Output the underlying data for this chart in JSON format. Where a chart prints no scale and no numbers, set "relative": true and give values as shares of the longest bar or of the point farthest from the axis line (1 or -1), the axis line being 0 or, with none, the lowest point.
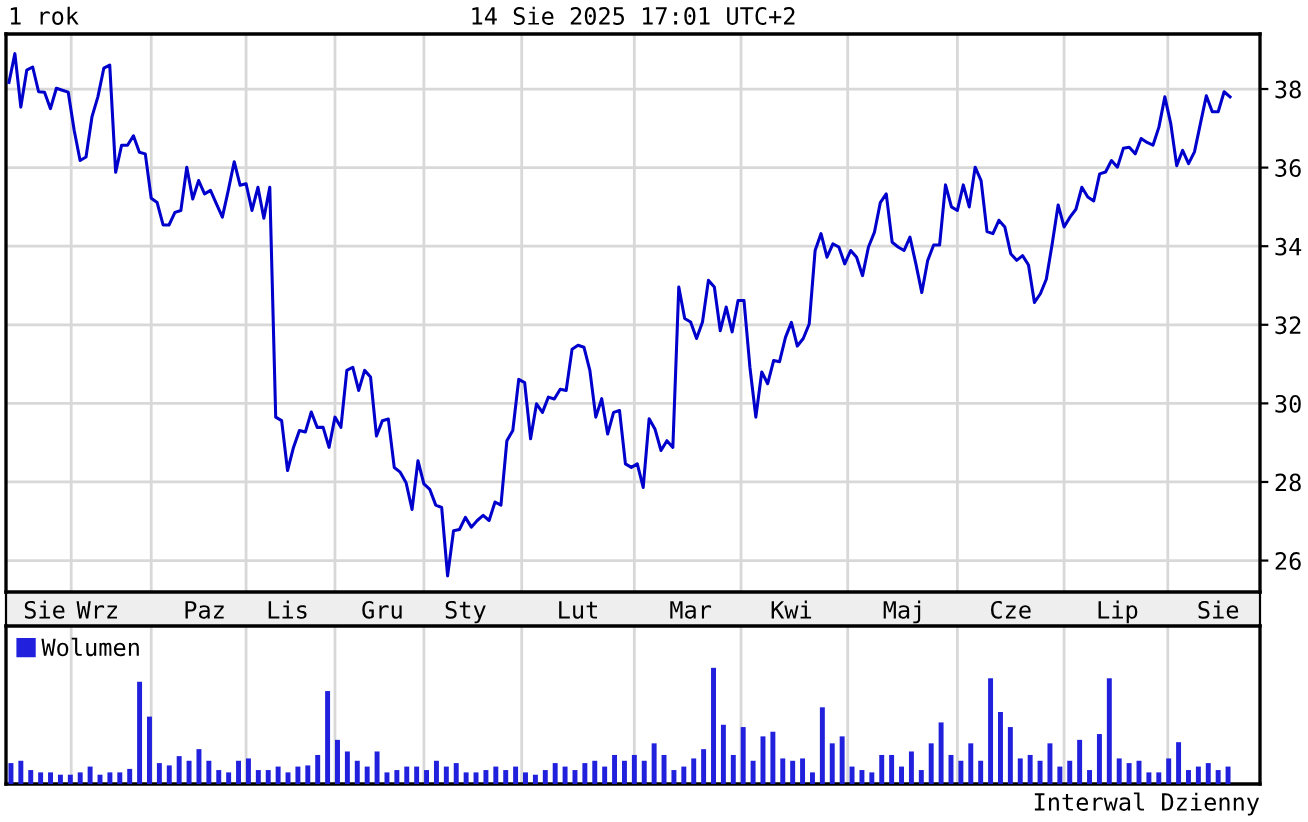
{
  "chart_data": [
    {
      "type": "line",
      "title": "1 rok",
      "subtitle": "14 Sie 2025 17:01 UTC+2",
      "categories": [
        null,
        null,
        null,
        null,
        null,
        null,
        "Sie",
        null,
        null,
        null,
        null,
        null,
        null,
        null,
        null,
        "Wrz",
        null,
        null,
        null,
        null,
        null,
        null,
        null,
        null,
        null,
        null,
        null,
        null,
        null,
        null,
        null,
        null,
        null,
        "Paz",
        null,
        null,
        null,
        null,
        null,
        null,
        null,
        null,
        null,
        null,
        null,
        null,
        null,
        "Lis",
        null,
        null,
        null,
        null,
        null,
        null,
        null,
        null,
        null,
        null,
        null,
        null,
        null,
        null,
        null,
        "Gru",
        null,
        null,
        null,
        null,
        null,
        null,
        null,
        null,
        null,
        null,
        null,
        null,
        null,
        "Sty",
        null,
        null,
        null,
        null,
        null,
        null,
        null,
        null,
        null,
        null,
        null,
        null,
        null,
        null,
        null,
        null,
        null,
        null,
        "Lut",
        null,
        null,
        null,
        null,
        null,
        null,
        null,
        null,
        null,
        null,
        null,
        null,
        null,
        null,
        null,
        null,
        null,
        null,
        "Mar",
        null,
        null,
        null,
        null,
        null,
        null,
        null,
        null,
        null,
        null,
        null,
        null,
        null,
        null,
        null,
        null,
        "Kwi",
        null,
        null,
        null,
        null,
        null,
        null,
        null,
        null,
        null,
        null,
        null,
        null,
        null,
        null,
        null,
        null,
        null,
        null,
        "Maj",
        null,
        null,
        null,
        null,
        null,
        null,
        null,
        null,
        null,
        null,
        null,
        null,
        null,
        null,
        null,
        null,
        null,
        "Cze",
        null,
        null,
        null,
        null,
        null,
        null,
        null,
        null,
        null,
        null,
        null,
        null,
        null,
        null,
        null,
        null,
        null,
        "Lip",
        null,
        null,
        null,
        null,
        null,
        null,
        null,
        null,
        null,
        null,
        null,
        null,
        null,
        null,
        null,
        null,
        "Sie",
        null,
        null
      ],
      "series": [
        {
          "color": "#0000cc",
          "values": [
            38.17,
            38.9,
            37.54,
            38.48,
            38.56,
            37.93,
            37.92,
            37.5,
            38.02,
            37.97,
            37.92,
            36.95,
            36.18,
            36.27,
            37.29,
            37.8,
            38.53,
            38.61,
            35.88,
            36.57,
            36.57,
            36.81,
            36.39,
            36.35,
            35.22,
            35.11,
            34.54,
            34.54,
            34.86,
            34.91,
            36.01,
            35.2,
            35.67,
            35.33,
            35.42,
            35.08,
            34.74,
            35.42,
            36.15,
            35.55,
            35.59,
            34.91,
            35.5,
            34.71,
            35.5,
            29.65,
            29.56,
            28.29,
            28.88,
            29.31,
            29.27,
            29.78,
            29.39,
            29.39,
            28.88,
            29.65,
            29.39,
            30.84,
            30.92,
            30.33,
            30.84,
            30.67,
            29.17,
            29.56,
            29.6,
            28.37,
            28.25,
            27.98,
            27.3,
            28.54,
            27.95,
            27.81,
            27.41,
            27.35,
            25.61,
            26.76,
            26.79,
            27.1,
            26.85,
            27.02,
            27.15,
            27.02,
            27.49,
            27.41,
            29.05,
            29.31,
            30.61,
            30.53,
            29.1,
            29.99,
            29.77,
            30.16,
            30.11,
            30.36,
            30.33,
            31.38,
            31.48,
            31.43,
            30.84,
            29.65,
            30.12,
            29.22,
            29.77,
            29.82,
            28.46,
            28.37,
            28.46,
            27.86,
            29.61,
            29.34,
            28.8,
            29.05,
            28.88,
            32.96,
            32.16,
            32.07,
            31.65,
            32.07,
            33.13,
            32.96,
            31.85,
            32.45,
            31.82,
            32.62,
            32.62,
            30.92,
            29.65,
            30.8,
            30.5,
            31.09,
            31.06,
            31.68,
            32.06,
            31.46,
            31.65,
            32.02,
            33.89,
            34.32,
            33.72,
            34.06,
            33.98,
            33.55,
            33.89,
            33.72,
            33.25,
            33.98,
            34.35,
            35.11,
            35.33,
            34.1,
            33.98,
            33.89,
            34.23,
            33.55,
            32.82,
            33.64,
            34.03,
            34.03,
            35.56,
            35.0,
            34.91,
            35.56,
            35.0,
            36.01,
            35.67,
            34.37,
            34.32,
            34.66,
            34.49,
            33.81,
            33.64,
            33.76,
            33.52,
            32.57,
            32.79,
            33.16,
            34.06,
            35.05,
            34.49,
            34.74,
            34.94,
            35.5,
            35.25,
            35.15,
            35.84,
            35.89,
            36.18,
            36.01,
            36.49,
            36.52,
            36.35,
            36.74,
            36.64,
            36.57,
            37.03,
            37.8,
            37.12,
            36.05,
            36.44,
            36.1,
            36.4,
            37.12,
            37.83,
            37.42,
            37.42,
            37.93,
            37.8
          ]
        }
      ],
      "ylim": [
        25.2,
        39.4
      ],
      "yticks": [
        26,
        28,
        30,
        32,
        34,
        36,
        38
      ],
      "grid": true,
      "line_style": "solid"
    },
    {
      "type": "bar",
      "relative": true,
      "legend": "top left",
      "grid": "x",
      "categories": [
        null,
        null,
        null,
        null,
        null,
        null,
        null,
        null,
        null,
        null,
        null,
        null,
        null,
        null,
        null,
        null,
        null,
        null,
        null,
        null,
        null,
        null,
        null,
        null,
        null,
        null,
        null,
        null,
        null,
        null,
        null,
        null,
        null,
        null,
        null,
        null,
        null,
        null,
        null,
        null,
        null,
        null,
        null,
        null,
        null,
        null,
        null,
        null,
        null,
        null,
        null,
        null,
        null,
        null,
        null,
        null,
        null,
        null,
        null,
        null,
        null,
        null,
        null,
        null,
        null,
        null,
        null,
        null,
        null,
        null,
        null,
        null,
        null,
        null,
        null,
        null,
        null,
        null,
        null,
        null,
        null,
        null,
        null,
        null,
        null,
        null,
        null,
        null,
        null,
        null,
        null,
        null,
        null,
        null,
        null,
        null,
        null,
        null,
        null,
        null,
        null,
        null,
        null,
        null,
        null,
        null,
        null,
        null,
        null,
        null,
        null,
        null,
        null,
        null,
        null,
        null,
        null,
        null,
        null,
        null,
        null,
        null,
        null,
        null
      ],
      "annotations": [
        "Interwal Dzienny"
      ],
      "series": [
        {
          "name": "Wolumen",
          "color": "#2020dd",
          "values": [
            0.18,
            0.2,
            0.12,
            0.1,
            0.1,
            0.08,
            0.08,
            0.1,
            0.15,
            0.08,
            0.1,
            0.1,
            0.13,
            0.88,
            0.58,
            0.18,
            0.16,
            0.24,
            0.2,
            0.3,
            0.2,
            0.12,
            0.1,
            0.2,
            0.22,
            0.12,
            0.12,
            0.15,
            0.1,
            0.15,
            0.16,
            0.25,
            0.8,
            0.38,
            0.28,
            0.2,
            0.15,
            0.28,
            0.1,
            0.12,
            0.15,
            0.15,
            0.12,
            0.2,
            0.15,
            0.18,
            0.1,
            0.1,
            0.12,
            0.15,
            0.12,
            0.15,
            0.1,
            0.08,
            0.12,
            0.18,
            0.15,
            0.12,
            0.18,
            0.2,
            0.15,
            0.25,
            0.2,
            0.25,
            0.2,
            0.35,
            0.25,
            0.12,
            0.15,
            0.22,
            0.3,
            1.0,
            0.51,
            0.25,
            0.49,
            0.2,
            0.41,
            0.45,
            0.22,
            0.2,
            0.22,
            0.1,
            0.66,
            0.35,
            0.41,
            0.15,
            0.12,
            0.1,
            0.25,
            0.25,
            0.15,
            0.28,
            0.12,
            0.35,
            0.53,
            0.25,
            0.2,
            0.35,
            0.2,
            0.91,
            0.62,
            0.49,
            0.22,
            0.25,
            0.2,
            0.35,
            0.15,
            0.2,
            0.38,
            0.12,
            0.43,
            0.91,
            0.22,
            0.18,
            0.2,
            0.1,
            0.1,
            0.22,
            0.36,
            0.12,
            0.15,
            0.18,
            0.12,
            0.15
          ]
        }
      ]
    }
  ]
}
